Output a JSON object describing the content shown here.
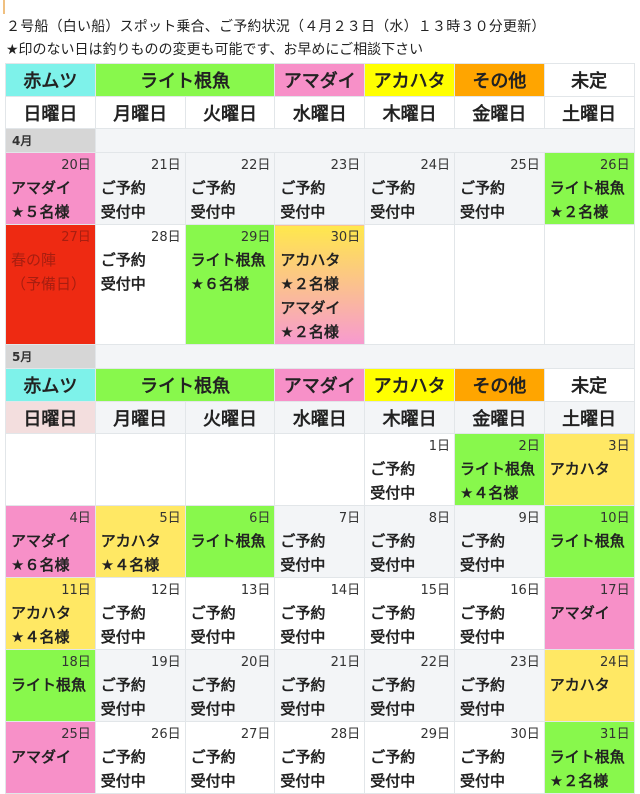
{
  "header": {
    "title": "２号船（白い船）スポット乗合、ご予約状況（４月２３日（水）１３時３０分更新）",
    "note": "★印のない日は釣りものの変更も可能です、お早めにご相談下さい"
  },
  "colors": {
    "cyan": "#7ef2ea",
    "green": "#88f84c",
    "pink": "#f790c8",
    "yellow": "#ffff00",
    "orange": "#ffa500",
    "cellYellow": "#ffe864",
    "red": "#ee2a12",
    "gray": "#f3f5f7",
    "white": "#ffffff",
    "grad": "linear-gradient(#ffe84c,#f79ad0)"
  },
  "legend": [
    {
      "label": "赤ムツ",
      "color": "cyan",
      "span": 1
    },
    {
      "label": "ライト根魚",
      "color": "green",
      "span": 2
    },
    {
      "label": "アマダイ",
      "color": "pink",
      "span": 1
    },
    {
      "label": "アカハタ",
      "color": "yellow",
      "span": 1
    },
    {
      "label": "その他",
      "color": "orange",
      "span": 1
    },
    {
      "label": "未定",
      "color": "white",
      "span": 1
    }
  ],
  "weekdays": [
    "日曜日",
    "月曜日",
    "火曜日",
    "水曜日",
    "木曜日",
    "金曜日",
    "土曜日"
  ],
  "months": [
    {
      "label": "4月",
      "weeks": [
        {
          "height": 70,
          "cells": [
            {
              "day": "20日",
              "lines": [
                "アマダイ",
                "★５名様"
              ],
              "bg": "pink"
            },
            {
              "day": "21日",
              "lines": [
                "ご予約",
                "受付中"
              ],
              "bg": "gray"
            },
            {
              "day": "22日",
              "lines": [
                "ご予約",
                "受付中"
              ],
              "bg": "gray"
            },
            {
              "day": "23日",
              "lines": [
                "ご予約",
                "受付中"
              ],
              "bg": "gray"
            },
            {
              "day": "24日",
              "lines": [
                "ご予約",
                "受付中"
              ],
              "bg": "gray"
            },
            {
              "day": "25日",
              "lines": [
                "ご予約",
                "受付中"
              ],
              "bg": "gray"
            },
            {
              "day": "26日",
              "lines": [
                "ライト根魚",
                "★２名様"
              ],
              "bg": "green"
            }
          ]
        },
        {
          "height": 116,
          "cells": [
            {
              "day": "27日",
              "lines": [
                "春の陣",
                "（予備日）"
              ],
              "bg": "red"
            },
            {
              "day": "28日",
              "lines": [
                "ご予約",
                "受付中"
              ],
              "bg": "white"
            },
            {
              "day": "29日",
              "lines": [
                "ライト根魚",
                "★６名様"
              ],
              "bg": "green"
            },
            {
              "day": "30日",
              "lines": [
                "アカハタ",
                "★２名様",
                "アマダイ",
                "★２名様"
              ],
              "bg": "grad"
            },
            {
              "day": "",
              "lines": [],
              "bg": "white"
            },
            {
              "day": "",
              "lines": [],
              "bg": "white"
            },
            {
              "day": "",
              "lines": [],
              "bg": "white"
            }
          ]
        }
      ]
    },
    {
      "label": "5月",
      "weeks": [
        {
          "height": 69,
          "cells": [
            {
              "day": "",
              "lines": [],
              "bg": "white"
            },
            {
              "day": "",
              "lines": [],
              "bg": "white"
            },
            {
              "day": "",
              "lines": [],
              "bg": "white"
            },
            {
              "day": "",
              "lines": [],
              "bg": "white"
            },
            {
              "day": "1日",
              "lines": [
                "ご予約",
                "受付中"
              ],
              "bg": "white"
            },
            {
              "day": "2日",
              "lines": [
                "ライト根魚",
                "★４名様"
              ],
              "bg": "green"
            },
            {
              "day": "3日",
              "lines": [
                "アカハタ"
              ],
              "bg": "cellYellow"
            }
          ]
        },
        {
          "height": 70,
          "cells": [
            {
              "day": "4日",
              "lines": [
                "アマダイ",
                "★６名様"
              ],
              "bg": "pink"
            },
            {
              "day": "5日",
              "lines": [
                "アカハタ",
                "★４名様"
              ],
              "bg": "cellYellow"
            },
            {
              "day": "6日",
              "lines": [
                "ライト根魚"
              ],
              "bg": "green"
            },
            {
              "day": "7日",
              "lines": [
                "ご予約",
                "受付中"
              ],
              "bg": "gray"
            },
            {
              "day": "8日",
              "lines": [
                "ご予約",
                "受付中"
              ],
              "bg": "gray"
            },
            {
              "day": "9日",
              "lines": [
                "ご予約",
                "受付中"
              ],
              "bg": "gray"
            },
            {
              "day": "10日",
              "lines": [
                "ライト根魚"
              ],
              "bg": "green"
            }
          ]
        },
        {
          "height": 70,
          "cells": [
            {
              "day": "11日",
              "lines": [
                "アカハタ",
                "★４名様"
              ],
              "bg": "cellYellow"
            },
            {
              "day": "12日",
              "lines": [
                "ご予約",
                "受付中"
              ],
              "bg": "white"
            },
            {
              "day": "13日",
              "lines": [
                "ご予約",
                "受付中"
              ],
              "bg": "white"
            },
            {
              "day": "14日",
              "lines": [
                "ご予約",
                "受付中"
              ],
              "bg": "white"
            },
            {
              "day": "15日",
              "lines": [
                "ご予約",
                "受付中"
              ],
              "bg": "white"
            },
            {
              "day": "16日",
              "lines": [
                "ご予約",
                "受付中"
              ],
              "bg": "white"
            },
            {
              "day": "17日",
              "lines": [
                "アマダイ"
              ],
              "bg": "pink"
            }
          ]
        },
        {
          "height": 70,
          "cells": [
            {
              "day": "18日",
              "lines": [
                "ライト根魚"
              ],
              "bg": "green"
            },
            {
              "day": "19日",
              "lines": [
                "ご予約",
                "受付中"
              ],
              "bg": "gray"
            },
            {
              "day": "20日",
              "lines": [
                "ご予約",
                "受付中"
              ],
              "bg": "gray"
            },
            {
              "day": "21日",
              "lines": [
                "ご予約",
                "受付中"
              ],
              "bg": "gray"
            },
            {
              "day": "22日",
              "lines": [
                "ご予約",
                "受付中"
              ],
              "bg": "gray"
            },
            {
              "day": "23日",
              "lines": [
                "ご予約",
                "受付中"
              ],
              "bg": "gray"
            },
            {
              "day": "24日",
              "lines": [
                "アカハタ"
              ],
              "bg": "cellYellow"
            }
          ]
        },
        {
          "height": 70,
          "cells": [
            {
              "day": "25日",
              "lines": [
                "アマダイ"
              ],
              "bg": "pink"
            },
            {
              "day": "26日",
              "lines": [
                "ご予約",
                "受付中"
              ],
              "bg": "white"
            },
            {
              "day": "27日",
              "lines": [
                "ご予約",
                "受付中"
              ],
              "bg": "white"
            },
            {
              "day": "28日",
              "lines": [
                "ご予約",
                "受付中"
              ],
              "bg": "white"
            },
            {
              "day": "29日",
              "lines": [
                "ご予約",
                "受付中"
              ],
              "bg": "white"
            },
            {
              "day": "30日",
              "lines": [
                "ご予約",
                "受付中"
              ],
              "bg": "white"
            },
            {
              "day": "31日",
              "lines": [
                "ライト根魚",
                "★２名様"
              ],
              "bg": "green"
            }
          ]
        }
      ]
    }
  ]
}
